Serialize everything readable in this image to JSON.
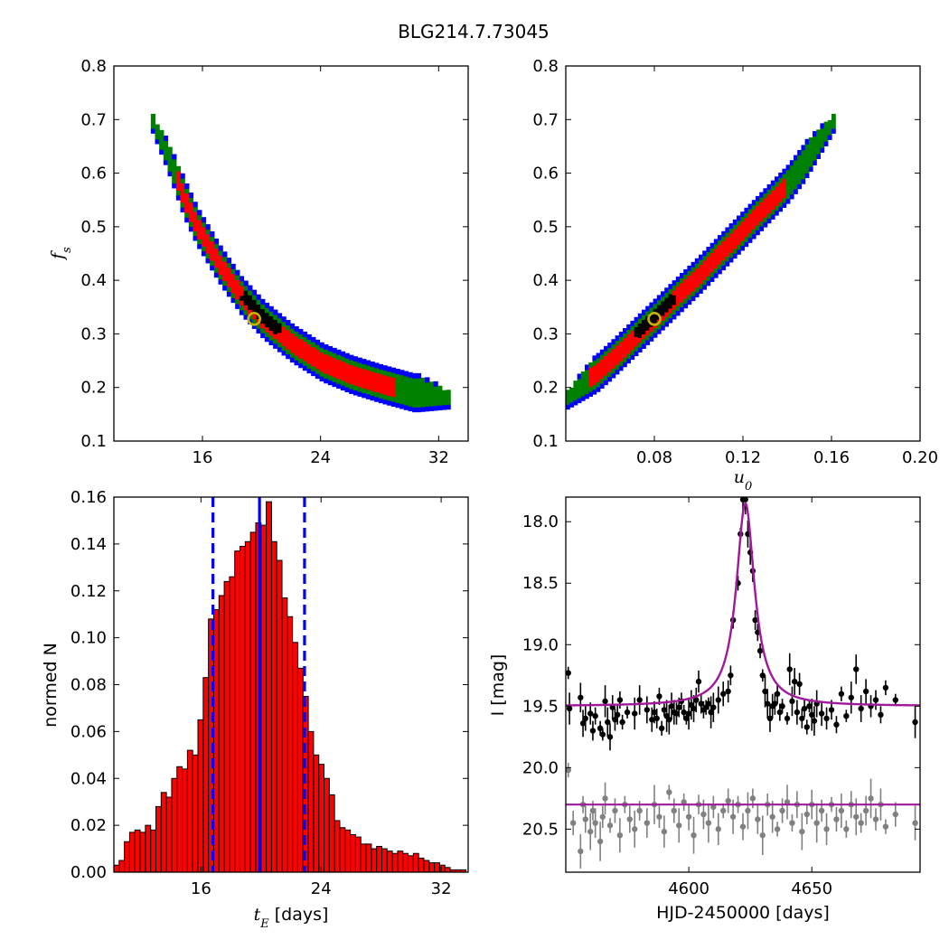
{
  "figure": {
    "title": "BLG214.7.73045"
  },
  "colors": {
    "level1": "#000000",
    "level2": "#ff0000",
    "level3": "#008000",
    "level4": "#0000ff",
    "marker_edge": "#c8b400",
    "hist_fill": "#ff0000",
    "hist_lines": "#0000ff",
    "model": "#a0189b",
    "data1": "#000000",
    "data2": "#808080"
  },
  "chart_data": [
    {
      "type": "heatmap",
      "title": "",
      "xlabel": "",
      "ylabel": "f_s",
      "xlim": [
        10,
        34
      ],
      "ylim": [
        0.1,
        0.8
      ],
      "xticks": [
        16,
        24,
        32
      ],
      "yticks": [
        0.1,
        0.2,
        0.3,
        0.4,
        0.5,
        0.6,
        0.7,
        0.8
      ],
      "xtick_labels": [
        "16",
        "24",
        "32"
      ],
      "ytick_labels": [
        "0.1",
        "0.2",
        "0.3",
        "0.4",
        "0.5",
        "0.6",
        "0.7",
        "0.8"
      ],
      "best_fit": {
        "x": 19.5,
        "y": 0.328
      },
      "confidence_levels": [
        "1-sigma (black)",
        "2-sigma (red)",
        "3-sigma (green)",
        "4-sigma (blue)"
      ],
      "ridge": [
        {
          "x": 12.5,
          "y": 0.69
        },
        {
          "x": 13.5,
          "y": 0.63
        },
        {
          "x": 14.5,
          "y": 0.56
        },
        {
          "x": 15.5,
          "y": 0.5
        },
        {
          "x": 17.0,
          "y": 0.43
        },
        {
          "x": 18.5,
          "y": 0.37
        },
        {
          "x": 20.0,
          "y": 0.325
        },
        {
          "x": 22.0,
          "y": 0.28
        },
        {
          "x": 24.0,
          "y": 0.245
        },
        {
          "x": 26.0,
          "y": 0.222
        },
        {
          "x": 28.0,
          "y": 0.205
        },
        {
          "x": 30.0,
          "y": 0.19
        },
        {
          "x": 32.5,
          "y": 0.175
        }
      ]
    },
    {
      "type": "heatmap",
      "title": "",
      "xlabel": "u_0",
      "ylabel": "",
      "xlim": [
        0.04,
        0.2
      ],
      "ylim": [
        0.1,
        0.8
      ],
      "xticks": [
        0.08,
        0.12,
        0.16,
        0.2
      ],
      "yticks": [
        0.1,
        0.2,
        0.3,
        0.4,
        0.5,
        0.6,
        0.7,
        0.8
      ],
      "xtick_labels": [
        "0.08",
        "0.12",
        "0.16",
        "0.20"
      ],
      "ytick_labels": [
        "0.1",
        "0.2",
        "0.3",
        "0.4",
        "0.5",
        "0.6",
        "0.7",
        "0.8"
      ],
      "best_fit": {
        "x": 0.08,
        "y": 0.328
      },
      "ridge": [
        {
          "x": 0.04,
          "y": 0.175
        },
        {
          "x": 0.06,
          "y": 0.25
        },
        {
          "x": 0.08,
          "y": 0.33
        },
        {
          "x": 0.1,
          "y": 0.41
        },
        {
          "x": 0.12,
          "y": 0.495
        },
        {
          "x": 0.14,
          "y": 0.58
        },
        {
          "x": 0.16,
          "y": 0.69
        }
      ]
    },
    {
      "type": "bar",
      "title": "",
      "xlabel": "t_E [days]",
      "ylabel": "normed N",
      "xlim": [
        10.2,
        33.8
      ],
      "ylim": [
        0,
        0.16
      ],
      "xticks": [
        16,
        24,
        32
      ],
      "yticks": [
        0,
        0.02,
        0.04,
        0.06,
        0.08,
        0.1,
        0.12,
        0.14,
        0.16
      ],
      "xtick_labels": [
        "16",
        "24",
        "32"
      ],
      "ytick_labels": [
        "0.00",
        "0.02",
        "0.04",
        "0.06",
        "0.08",
        "0.10",
        "0.12",
        "0.14",
        "0.16"
      ],
      "bin_start": 10.2,
      "bin_width": 0.35,
      "values": [
        0.003,
        0.005,
        0.013,
        0.017,
        0.018,
        0.017,
        0.02,
        0.018,
        0.028,
        0.034,
        0.032,
        0.04,
        0.045,
        0.044,
        0.052,
        0.05,
        0.065,
        0.083,
        0.108,
        0.112,
        0.118,
        0.124,
        0.126,
        0.137,
        0.139,
        0.141,
        0.145,
        0.149,
        0.148,
        0.158,
        0.141,
        0.133,
        0.117,
        0.109,
        0.098,
        0.087,
        0.075,
        0.06,
        0.05,
        0.046,
        0.04,
        0.033,
        0.022,
        0.019,
        0.018,
        0.016,
        0.015,
        0.012,
        0.012,
        0.01,
        0.011,
        0.01,
        0.009,
        0.008,
        0.009,
        0.008,
        0.007,
        0.008,
        0.006,
        0.005,
        0.004,
        0.004,
        0.003,
        0.002,
        0.001,
        0.001,
        0.001
      ],
      "vlines": [
        {
          "x": 16.8,
          "style": "dashed"
        },
        {
          "x": 19.9,
          "style": "solid"
        },
        {
          "x": 22.9,
          "style": "dashed"
        }
      ]
    },
    {
      "type": "scatter",
      "title": "",
      "xlabel": "HJD-2450000 [days]",
      "ylabel": "I [mag]",
      "xlim": [
        4550,
        4694
      ],
      "ylim": [
        20.85,
        17.8
      ],
      "xticks": [
        4600,
        4650
      ],
      "yticks": [
        18.0,
        18.5,
        19.0,
        19.5,
        20.0,
        20.5
      ],
      "xtick_labels": [
        "4600",
        "4650"
      ],
      "ytick_labels": [
        "18.0",
        "18.5",
        "19.0",
        "19.5",
        "20.0",
        "20.5"
      ],
      "series": [
        {
          "baseline": 19.5,
          "model": {
            "t0": 4623,
            "peak": 17.85,
            "width": 4.5,
            "baseline": 19.5
          },
          "points": [
            {
              "x": 4551,
              "y": 19.23
            },
            {
              "x": 4551.5,
              "y": 19.52
            },
            {
              "x": 4556,
              "y": 19.43
            },
            {
              "x": 4557,
              "y": 19.64
            },
            {
              "x": 4558,
              "y": 19.6
            },
            {
              "x": 4560,
              "y": 19.56
            },
            {
              "x": 4561,
              "y": 19.7
            },
            {
              "x": 4562,
              "y": 19.58
            },
            {
              "x": 4564,
              "y": 19.68
            },
            {
              "x": 4565,
              "y": 19.73
            },
            {
              "x": 4566,
              "y": 19.46
            },
            {
              "x": 4567,
              "y": 19.63
            },
            {
              "x": 4568,
              "y": 19.75
            },
            {
              "x": 4569,
              "y": 19.51
            },
            {
              "x": 4570,
              "y": 19.61
            },
            {
              "x": 4571,
              "y": 19.57
            },
            {
              "x": 4572,
              "y": 19.45
            },
            {
              "x": 4573,
              "y": 19.63
            },
            {
              "x": 4575,
              "y": 19.55
            },
            {
              "x": 4578,
              "y": 19.56
            },
            {
              "x": 4580,
              "y": 19.45
            },
            {
              "x": 4583,
              "y": 19.53
            },
            {
              "x": 4585,
              "y": 19.61
            },
            {
              "x": 4586,
              "y": 19.55
            },
            {
              "x": 4587,
              "y": 19.6
            },
            {
              "x": 4588,
              "y": 19.42
            },
            {
              "x": 4589,
              "y": 19.68
            },
            {
              "x": 4590,
              "y": 19.53
            },
            {
              "x": 4591,
              "y": 19.58
            },
            {
              "x": 4592,
              "y": 19.61
            },
            {
              "x": 4593,
              "y": 19.5
            },
            {
              "x": 4594,
              "y": 19.55
            },
            {
              "x": 4595,
              "y": 19.56
            },
            {
              "x": 4596,
              "y": 19.51
            },
            {
              "x": 4597,
              "y": 19.46
            },
            {
              "x": 4598,
              "y": 19.55
            },
            {
              "x": 4599,
              "y": 19.6
            },
            {
              "x": 4600,
              "y": 19.56
            },
            {
              "x": 4601,
              "y": 19.49
            },
            {
              "x": 4602,
              "y": 19.52
            },
            {
              "x": 4603,
              "y": 19.45
            },
            {
              "x": 4604,
              "y": 19.3
            },
            {
              "x": 4605,
              "y": 19.48
            },
            {
              "x": 4606,
              "y": 19.53
            },
            {
              "x": 4607,
              "y": 19.51
            },
            {
              "x": 4608,
              "y": 19.48
            },
            {
              "x": 4609,
              "y": 19.55
            },
            {
              "x": 4610,
              "y": 19.51
            },
            {
              "x": 4612,
              "y": 19.45
            },
            {
              "x": 4614,
              "y": 19.4
            },
            {
              "x": 4616,
              "y": 19.38
            },
            {
              "x": 4617,
              "y": 19.25
            },
            {
              "x": 4618,
              "y": 18.8
            },
            {
              "x": 4620,
              "y": 18.5
            },
            {
              "x": 4621,
              "y": 18.1
            },
            {
              "x": 4622,
              "y": 17.82
            },
            {
              "x": 4623,
              "y": 17.82
            },
            {
              "x": 4624,
              "y": 18.1
            },
            {
              "x": 4625,
              "y": 18.25
            },
            {
              "x": 4626,
              "y": 18.4
            },
            {
              "x": 4627,
              "y": 18.8
            },
            {
              "x": 4628,
              "y": 18.9
            },
            {
              "x": 4629,
              "y": 19.05
            },
            {
              "x": 4630,
              "y": 19.25
            },
            {
              "x": 4631,
              "y": 19.38
            },
            {
              "x": 4632,
              "y": 19.48
            },
            {
              "x": 4633,
              "y": 19.6
            },
            {
              "x": 4634,
              "y": 19.5
            },
            {
              "x": 4635,
              "y": 19.48
            },
            {
              "x": 4636,
              "y": 19.4
            },
            {
              "x": 4637,
              "y": 19.55
            },
            {
              "x": 4638,
              "y": 19.5
            },
            {
              "x": 4640,
              "y": 19.6
            },
            {
              "x": 4641,
              "y": 19.2
            },
            {
              "x": 4642,
              "y": 19.46
            },
            {
              "x": 4643,
              "y": 19.3
            },
            {
              "x": 4644,
              "y": 19.55
            },
            {
              "x": 4645,
              "y": 19.32
            },
            {
              "x": 4646,
              "y": 19.6
            },
            {
              "x": 4647,
              "y": 19.52
            },
            {
              "x": 4648,
              "y": 19.67
            },
            {
              "x": 4649,
              "y": 19.5
            },
            {
              "x": 4650,
              "y": 19.57
            },
            {
              "x": 4651,
              "y": 19.62
            },
            {
              "x": 4652,
              "y": 19.48
            },
            {
              "x": 4654,
              "y": 19.56
            },
            {
              "x": 4656,
              "y": 19.6
            },
            {
              "x": 4658,
              "y": 19.53
            },
            {
              "x": 4660,
              "y": 19.65
            },
            {
              "x": 4662,
              "y": 19.4
            },
            {
              "x": 4664,
              "y": 19.58
            },
            {
              "x": 4666,
              "y": 19.43
            },
            {
              "x": 4668,
              "y": 19.2
            },
            {
              "x": 4670,
              "y": 19.52
            },
            {
              "x": 4672,
              "y": 19.38
            },
            {
              "x": 4674,
              "y": 19.5
            },
            {
              "x": 4676,
              "y": 19.45
            },
            {
              "x": 4678,
              "y": 19.57
            },
            {
              "x": 4680,
              "y": 19.35
            },
            {
              "x": 4684,
              "y": 19.45
            },
            {
              "x": 4692,
              "y": 19.63
            }
          ]
        },
        {
          "baseline": 20.3,
          "points": [
            {
              "x": 4551,
              "y": 20.02
            },
            {
              "x": 4553,
              "y": 20.45
            },
            {
              "x": 4556,
              "y": 20.68
            },
            {
              "x": 4557,
              "y": 20.3
            },
            {
              "x": 4558,
              "y": 20.42
            },
            {
              "x": 4560,
              "y": 20.52
            },
            {
              "x": 4561,
              "y": 20.35
            },
            {
              "x": 4562,
              "y": 20.45
            },
            {
              "x": 4564,
              "y": 20.6
            },
            {
              "x": 4565,
              "y": 20.4
            },
            {
              "x": 4566,
              "y": 20.25
            },
            {
              "x": 4568,
              "y": 20.47
            },
            {
              "x": 4570,
              "y": 20.35
            },
            {
              "x": 4572,
              "y": 20.55
            },
            {
              "x": 4574,
              "y": 20.3
            },
            {
              "x": 4576,
              "y": 20.42
            },
            {
              "x": 4578,
              "y": 20.5
            },
            {
              "x": 4580,
              "y": 20.35
            },
            {
              "x": 4583,
              "y": 20.45
            },
            {
              "x": 4586,
              "y": 20.3
            },
            {
              "x": 4588,
              "y": 20.4
            },
            {
              "x": 4590,
              "y": 20.52
            },
            {
              "x": 4592,
              "y": 20.2
            },
            {
              "x": 4594,
              "y": 20.35
            },
            {
              "x": 4596,
              "y": 20.47
            },
            {
              "x": 4598,
              "y": 20.28
            },
            {
              "x": 4600,
              "y": 20.4
            },
            {
              "x": 4602,
              "y": 20.55
            },
            {
              "x": 4604,
              "y": 20.3
            },
            {
              "x": 4606,
              "y": 20.38
            },
            {
              "x": 4608,
              "y": 20.45
            },
            {
              "x": 4610,
              "y": 20.32
            },
            {
              "x": 4612,
              "y": 20.5
            },
            {
              "x": 4614,
              "y": 20.35
            },
            {
              "x": 4616,
              "y": 20.27
            },
            {
              "x": 4618,
              "y": 20.4
            },
            {
              "x": 4620,
              "y": 20.3
            },
            {
              "x": 4622,
              "y": 20.48
            },
            {
              "x": 4624,
              "y": 20.35
            },
            {
              "x": 4626,
              "y": 20.25
            },
            {
              "x": 4628,
              "y": 20.42
            },
            {
              "x": 4630,
              "y": 20.55
            },
            {
              "x": 4632,
              "y": 20.3
            },
            {
              "x": 4634,
              "y": 20.4
            },
            {
              "x": 4636,
              "y": 20.5
            },
            {
              "x": 4638,
              "y": 20.35
            },
            {
              "x": 4640,
              "y": 20.28
            },
            {
              "x": 4642,
              "y": 20.45
            },
            {
              "x": 4644,
              "y": 20.3
            },
            {
              "x": 4646,
              "y": 20.52
            },
            {
              "x": 4648,
              "y": 20.38
            },
            {
              "x": 4650,
              "y": 20.3
            },
            {
              "x": 4652,
              "y": 20.45
            },
            {
              "x": 4654,
              "y": 20.35
            },
            {
              "x": 4656,
              "y": 20.5
            },
            {
              "x": 4658,
              "y": 20.3
            },
            {
              "x": 4660,
              "y": 20.42
            },
            {
              "x": 4662,
              "y": 20.35
            },
            {
              "x": 4664,
              "y": 20.5
            },
            {
              "x": 4666,
              "y": 20.3
            },
            {
              "x": 4668,
              "y": 20.4
            },
            {
              "x": 4670,
              "y": 20.45
            },
            {
              "x": 4672,
              "y": 20.35
            },
            {
              "x": 4674,
              "y": 20.25
            },
            {
              "x": 4676,
              "y": 20.42
            },
            {
              "x": 4678,
              "y": 20.3
            },
            {
              "x": 4680,
              "y": 20.48
            },
            {
              "x": 4684,
              "y": 20.38
            },
            {
              "x": 4692,
              "y": 20.45
            }
          ]
        }
      ]
    }
  ]
}
